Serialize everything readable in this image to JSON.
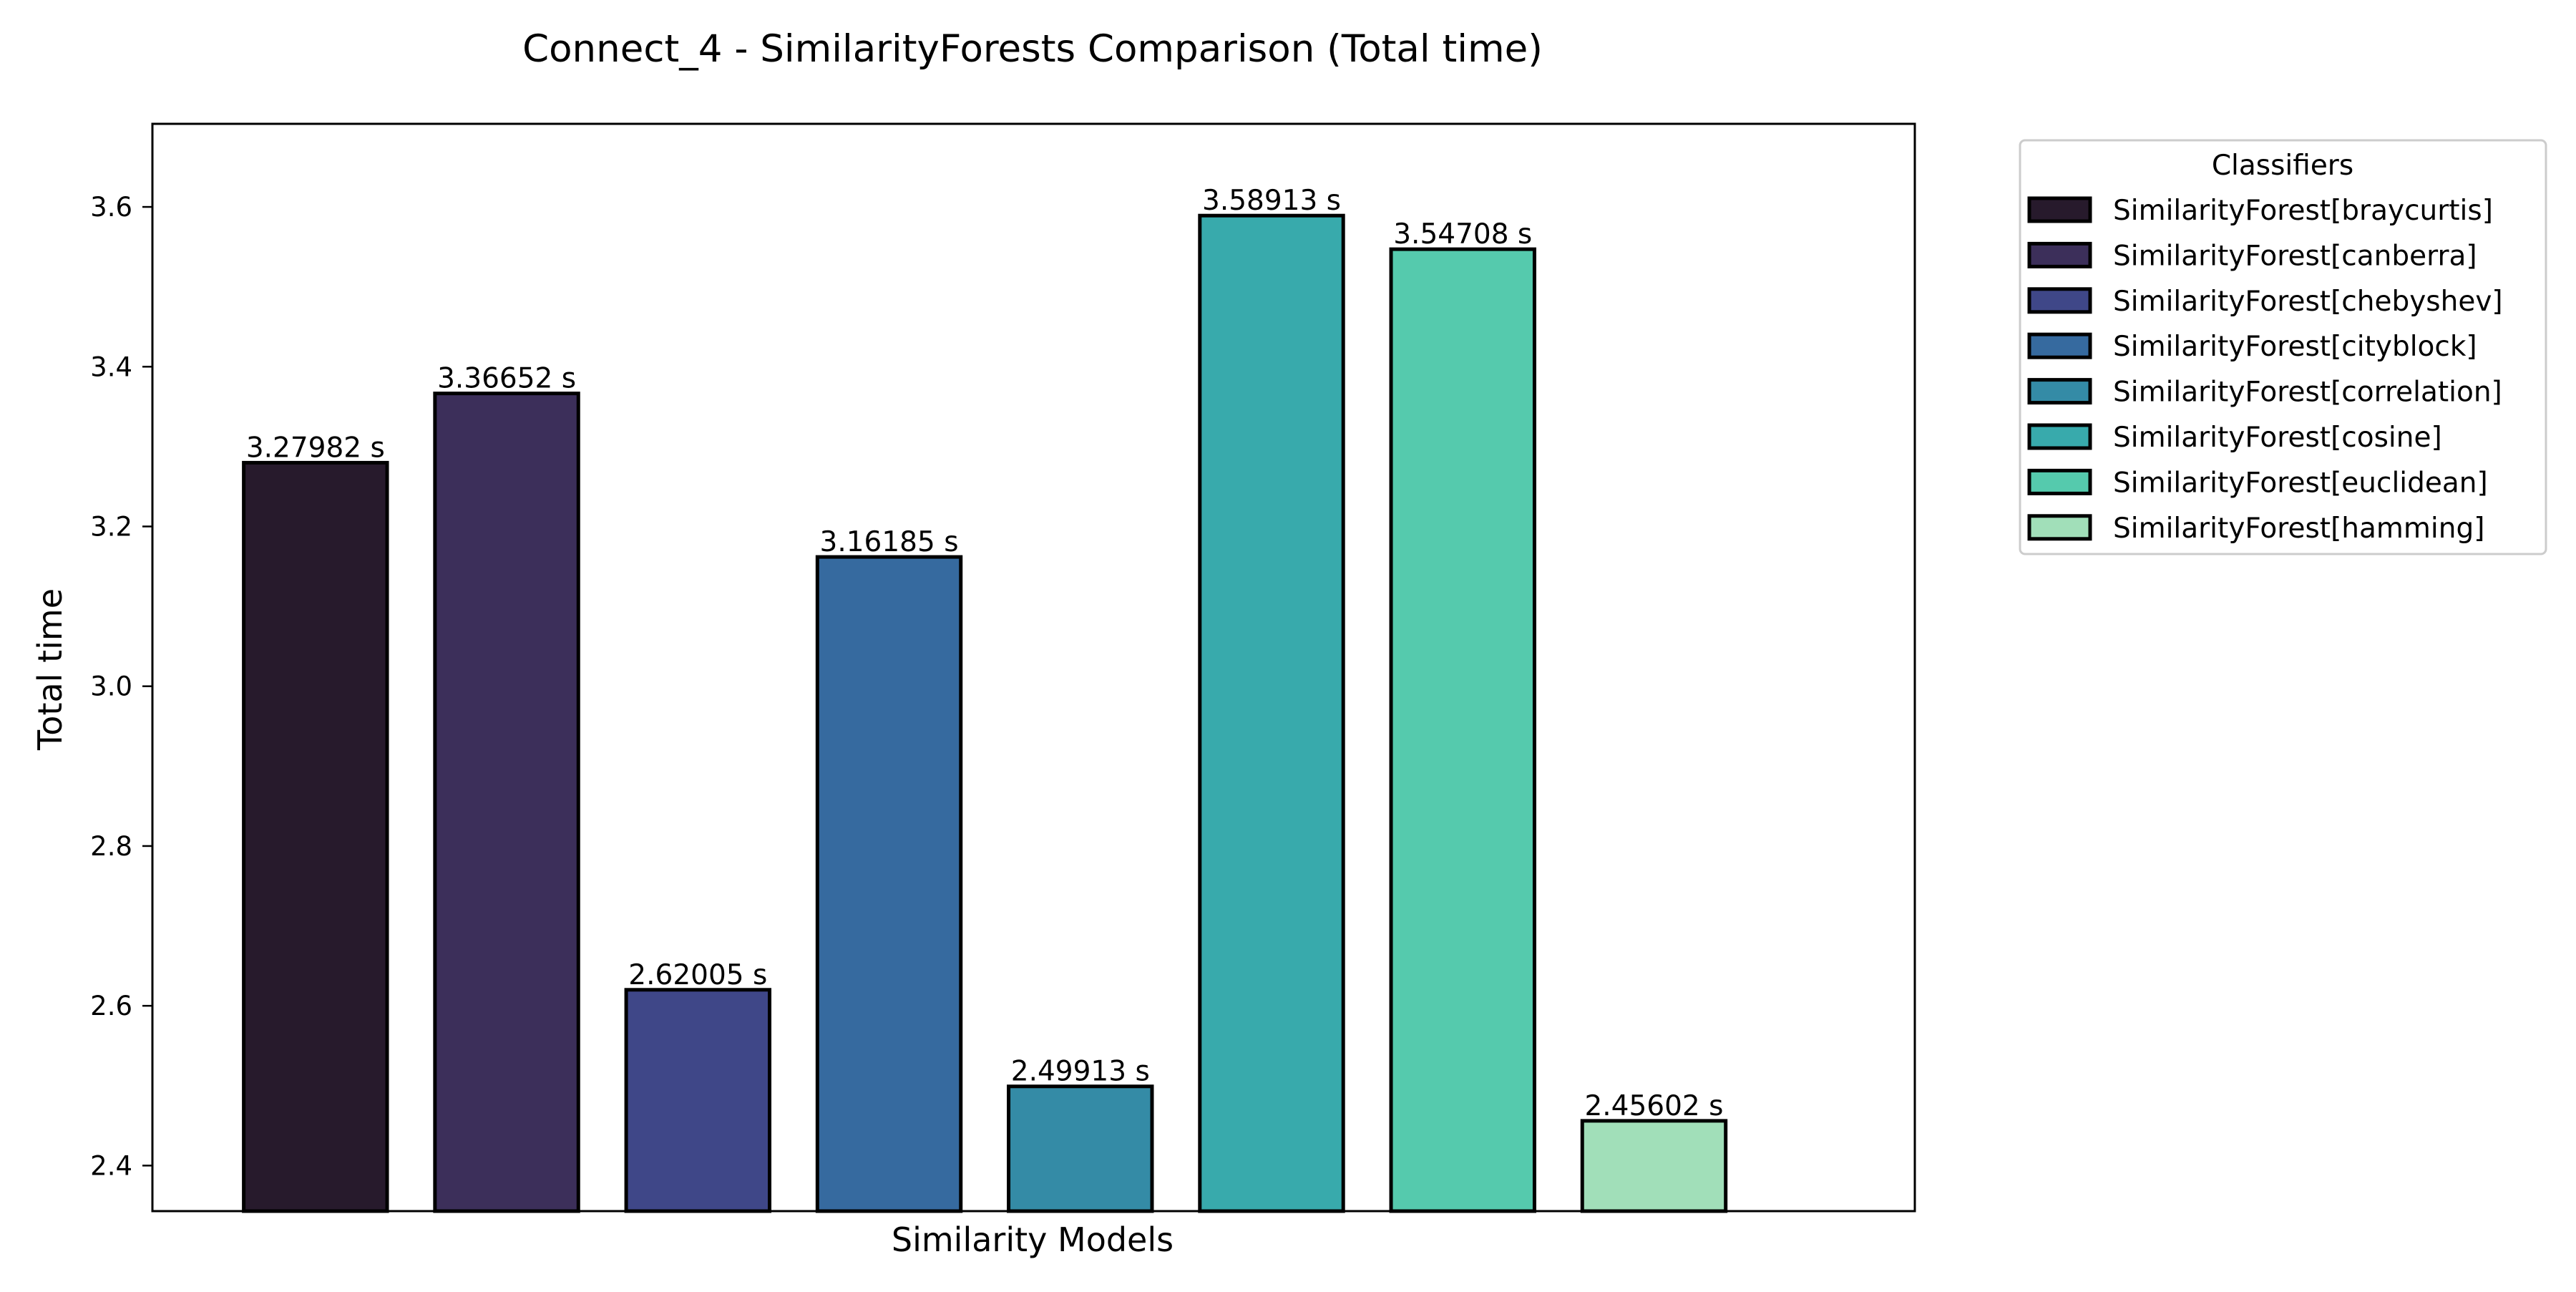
{
  "chart_data": {
    "type": "bar",
    "title": "Connect_4 - SimilarityForests Comparison (Total time)",
    "xlabel": "Similarity Models",
    "ylabel": "Total time",
    "ylim": [
      2.343,
      3.704
    ],
    "yticks": [
      2.4,
      2.6,
      2.8,
      3.0,
      3.2,
      3.4,
      3.6
    ],
    "ytick_labels": [
      "2.4",
      "2.6",
      "2.8",
      "3.0",
      "3.2",
      "3.4",
      "3.6"
    ],
    "grid": false,
    "categories": [
      "SimilarityForest[braycurtis]",
      "SimilarityForest[canberra]",
      "SimilarityForest[chebyshev]",
      "SimilarityForest[cityblock]",
      "SimilarityForest[correlation]",
      "SimilarityForest[cosine]",
      "SimilarityForest[euclidean]",
      "SimilarityForest[hamming]"
    ],
    "values": [
      3.27982,
      3.36652,
      2.62005,
      3.16185,
      2.49913,
      3.58913,
      3.54708,
      2.45602
    ],
    "data_labels": [
      "3.27982 s",
      "3.36652 s",
      "2.62005 s",
      "3.16185 s",
      "2.49913 s",
      "3.58913 s",
      "3.54708 s",
      "2.45602 s"
    ],
    "colors": [
      "#271a2c",
      "#3c2f5a",
      "#3f4788",
      "#366a9f",
      "#348ba6",
      "#38aaac",
      "#55caad",
      "#a1dfb9"
    ],
    "edge_color": "#000000",
    "legend": {
      "title": "Classifiers",
      "placement": "outside-right-top"
    }
  }
}
